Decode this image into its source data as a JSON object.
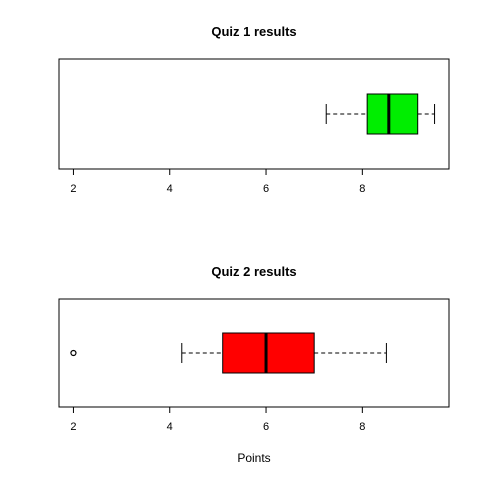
{
  "chart_data": [
    {
      "type": "boxplot",
      "orientation": "horizontal",
      "title": "Quiz 1 results",
      "xlabel": "",
      "xlim": [
        1.7,
        9.8
      ],
      "xticks": [
        2,
        4,
        6,
        8
      ],
      "xtick_labels": [
        "2",
        "4",
        "6",
        "8"
      ],
      "whisker_low": 7.25,
      "q1": 8.1,
      "median": 8.55,
      "q3": 9.15,
      "whisker_high": 9.5,
      "outliers": [],
      "color": "#00ee00"
    },
    {
      "type": "boxplot",
      "orientation": "horizontal",
      "title": "Quiz 2 results",
      "xlabel": "Points",
      "xlim": [
        1.7,
        9.8
      ],
      "xticks": [
        2,
        4,
        6,
        8
      ],
      "xtick_labels": [
        "2",
        "4",
        "6",
        "8"
      ],
      "whisker_low": 4.25,
      "q1": 5.1,
      "median": 6.0,
      "q3": 7.0,
      "whisker_high": 8.5,
      "outliers": [
        2.0
      ],
      "color": "#ff0000"
    }
  ]
}
